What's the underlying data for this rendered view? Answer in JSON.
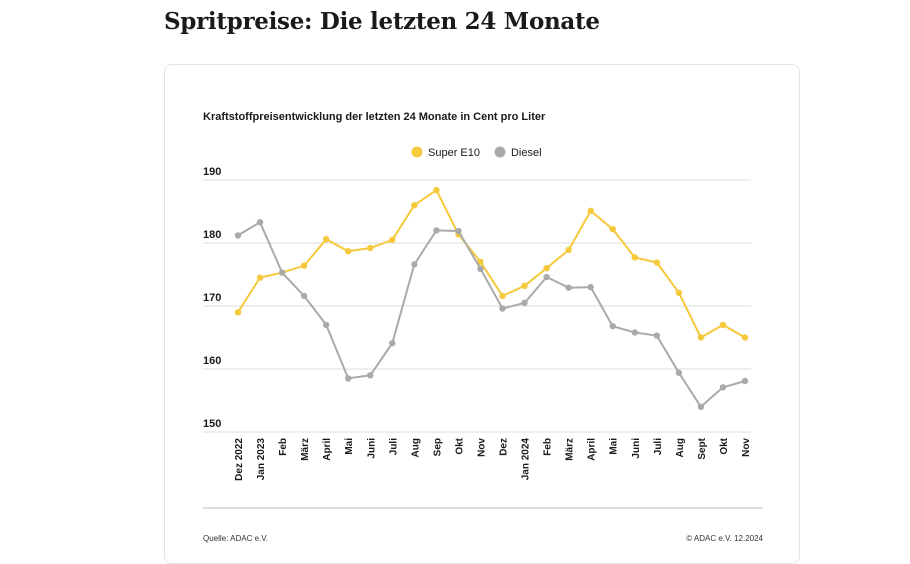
{
  "page": {
    "title": "Spritpreise: Die letzten 24 Monate"
  },
  "chart_data": {
    "type": "line",
    "title": "Kraftstoffpreisentwicklung der letzten 24 Monate in Cent pro Liter",
    "xlabel": "",
    "ylabel": "",
    "ylim": [
      150,
      190
    ],
    "yticks": [
      150,
      160,
      170,
      180,
      190
    ],
    "grid": true,
    "legend_position": "top-center",
    "categories": [
      "Dez 2022",
      "Jan 2023",
      "Feb",
      "März",
      "April",
      "Mai",
      "Juni",
      "Juli",
      "Aug",
      "Sep",
      "Okt",
      "Nov",
      "Dez",
      "Jan 2024",
      "Feb",
      "März",
      "April",
      "Mai",
      "Juni",
      "Juli",
      "Aug",
      "Sept",
      "Okt",
      "Nov"
    ],
    "series": [
      {
        "name": "Super E10",
        "color": "#f5c93b",
        "values": [
          169.0,
          174.5,
          175.3,
          176.4,
          180.6,
          178.7,
          179.2,
          180.5,
          186.0,
          188.4,
          181.4,
          177.0,
          171.6,
          173.2,
          176.0,
          178.9,
          185.1,
          182.2,
          177.7,
          176.9,
          172.1,
          165.0,
          167.0,
          165.0
        ]
      },
      {
        "name": "Diesel",
        "color": "#aaaaaa",
        "values": [
          181.2,
          183.3,
          175.3,
          171.6,
          167.0,
          158.5,
          159.0,
          164.1,
          176.6,
          182.0,
          181.9,
          175.9,
          169.6,
          170.5,
          174.6,
          172.9,
          173.0,
          166.8,
          165.8,
          165.3,
          159.4,
          154.0,
          157.1,
          158.1
        ]
      }
    ],
    "source": "Quelle: ADAC e.V.",
    "copyright": "© ADAC e.V. 12.2024"
  }
}
